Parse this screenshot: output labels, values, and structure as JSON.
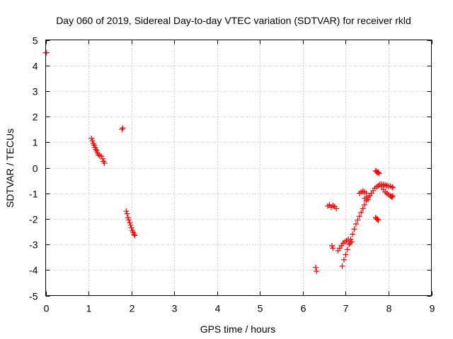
{
  "chart_data": {
    "type": "scatter",
    "title": "Day 060 of 2019, Sidereal Day-to-day VTEC variation (SDTVAR) for receiver rkld",
    "xlabel": "GPS time / hours",
    "ylabel": "SDTVAR / TECUs",
    "xlim": [
      0,
      9
    ],
    "ylim": [
      -5,
      5
    ],
    "xticks": [
      0,
      1,
      2,
      3,
      4,
      5,
      6,
      7,
      8,
      9
    ],
    "yticks": [
      -5,
      -4,
      -3,
      -2,
      -1,
      0,
      1,
      2,
      3,
      4,
      5
    ],
    "xtick_labels": [
      "0",
      "1",
      "2",
      "3",
      "4",
      "5",
      "6",
      "7",
      "8",
      "9"
    ],
    "ytick_labels": [
      "-5",
      "-4",
      "-3",
      "-2",
      "-1",
      "0",
      "1",
      "2",
      "3",
      "4",
      "5"
    ],
    "grid": true,
    "legend": "none",
    "marker": "plus",
    "color": "#ff0000",
    "series": [
      {
        "x": [
          0.0,
          0.02,
          1.07,
          1.09,
          1.11,
          1.13,
          1.15,
          1.17,
          1.19,
          1.21,
          1.23,
          1.26,
          1.3,
          1.33,
          1.35,
          1.37,
          1.78,
          1.8,
          1.88,
          1.9,
          1.92,
          1.94,
          1.96,
          1.98,
          2.0,
          2.02,
          2.04,
          2.06,
          2.08,
          6.3,
          6.32,
          6.58,
          6.62,
          6.66,
          6.7,
          6.74,
          6.78,
          6.68,
          6.7,
          6.82,
          6.86,
          6.9,
          6.94,
          6.98,
          7.02,
          7.06,
          7.1,
          7.14,
          6.92,
          6.96,
          7.0,
          7.04,
          7.08,
          7.12,
          7.16,
          7.2,
          7.24,
          7.28,
          7.32,
          7.36,
          7.4,
          7.44,
          7.48,
          7.52,
          7.32,
          7.36,
          7.4,
          7.44,
          7.48,
          7.44,
          7.48,
          7.52,
          7.56,
          7.6,
          7.64,
          7.68,
          7.72,
          7.76,
          7.8,
          7.84,
          7.88,
          7.92,
          7.96,
          8.0,
          8.04,
          8.08,
          8.1,
          7.7,
          7.72,
          7.74,
          7.76,
          7.78,
          7.7,
          7.72,
          7.74,
          7.76,
          7.84,
          7.88,
          7.92,
          7.96,
          8.0,
          8.04,
          8.06,
          8.08,
          8.1
        ],
        "y": [
          4.5,
          4.5,
          1.15,
          1.05,
          0.95,
          0.88,
          0.8,
          0.72,
          0.66,
          0.58,
          0.5,
          0.48,
          0.45,
          0.35,
          0.25,
          0.18,
          1.5,
          1.55,
          -1.7,
          -1.8,
          -1.95,
          -2.05,
          -2.15,
          -2.25,
          -2.35,
          -2.45,
          -2.52,
          -2.6,
          -2.65,
          -3.9,
          -4.05,
          -1.5,
          -1.45,
          -1.55,
          -1.48,
          -1.52,
          -1.6,
          -3.05,
          -3.15,
          -3.25,
          -3.15,
          -3.05,
          -2.95,
          -2.9,
          -2.85,
          -2.8,
          -2.95,
          -2.9,
          -3.85,
          -3.6,
          -3.4,
          -3.2,
          -3.0,
          -2.8,
          -2.6,
          -2.4,
          -2.2,
          -2.05,
          -1.9,
          -1.75,
          -1.6,
          -1.45,
          -1.3,
          -1.25,
          -1.0,
          -0.95,
          -0.92,
          -0.95,
          -1.0,
          -1.2,
          -1.2,
          -1.15,
          -1.1,
          -1.0,
          -0.9,
          -0.8,
          -0.75,
          -0.7,
          -0.65,
          -0.65,
          -0.65,
          -0.68,
          -0.7,
          -0.72,
          -0.72,
          -0.75,
          -0.78,
          -0.12,
          -0.15,
          -0.2,
          -0.18,
          -0.22,
          -1.95,
          -2.0,
          -2.02,
          -2.05,
          -0.75,
          -0.85,
          -0.95,
          -1.0,
          -1.05,
          -1.1,
          -1.12,
          -1.15,
          -1.1
        ]
      }
    ]
  }
}
